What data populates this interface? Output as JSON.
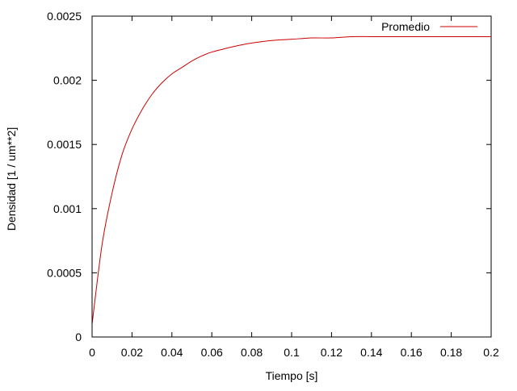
{
  "chart_data": {
    "type": "line",
    "title": "",
    "xlabel": "Tiempo [s]",
    "ylabel": "Densidad [1 / um**2]",
    "xlim": [
      0,
      0.2
    ],
    "ylim": [
      0,
      0.0025
    ],
    "xticks": [
      0,
      0.02,
      0.04,
      0.06,
      0.08,
      0.1,
      0.12,
      0.14,
      0.16,
      0.18,
      0.2
    ],
    "xtick_labels": [
      "0",
      "0.02",
      "0.04",
      "0.06",
      "0.08",
      "0.1",
      "0.12",
      "0.14",
      "0.16",
      "0.18",
      "0.2"
    ],
    "yticks": [
      0,
      0.0005,
      0.001,
      0.0015,
      0.002,
      0.0025
    ],
    "ytick_labels": [
      "0",
      "0.0005",
      "0.001",
      "0.0015",
      "0.002",
      "0.0025"
    ],
    "grid": false,
    "legend_position": "top-right",
    "series": [
      {
        "name": "Promedio",
        "color": "#cc0000",
        "x": [
          0,
          0.005,
          0.01,
          0.015,
          0.02,
          0.025,
          0.03,
          0.035,
          0.04,
          0.045,
          0.05,
          0.055,
          0.06,
          0.065,
          0.07,
          0.08,
          0.09,
          0.1,
          0.11,
          0.12,
          0.13,
          0.14,
          0.15,
          0.16,
          0.17,
          0.18,
          0.19,
          0.2
        ],
        "y": [
          0.0001,
          0.00072,
          0.00112,
          0.00142,
          0.00162,
          0.00177,
          0.00189,
          0.00198,
          0.00205,
          0.0021,
          0.00215,
          0.00219,
          0.00222,
          0.00224,
          0.00226,
          0.00229,
          0.00231,
          0.00232,
          0.00233,
          0.00233,
          0.00234,
          0.00234,
          0.00234,
          0.00234,
          0.00234,
          0.00234,
          0.00234,
          0.00234
        ]
      }
    ]
  }
}
